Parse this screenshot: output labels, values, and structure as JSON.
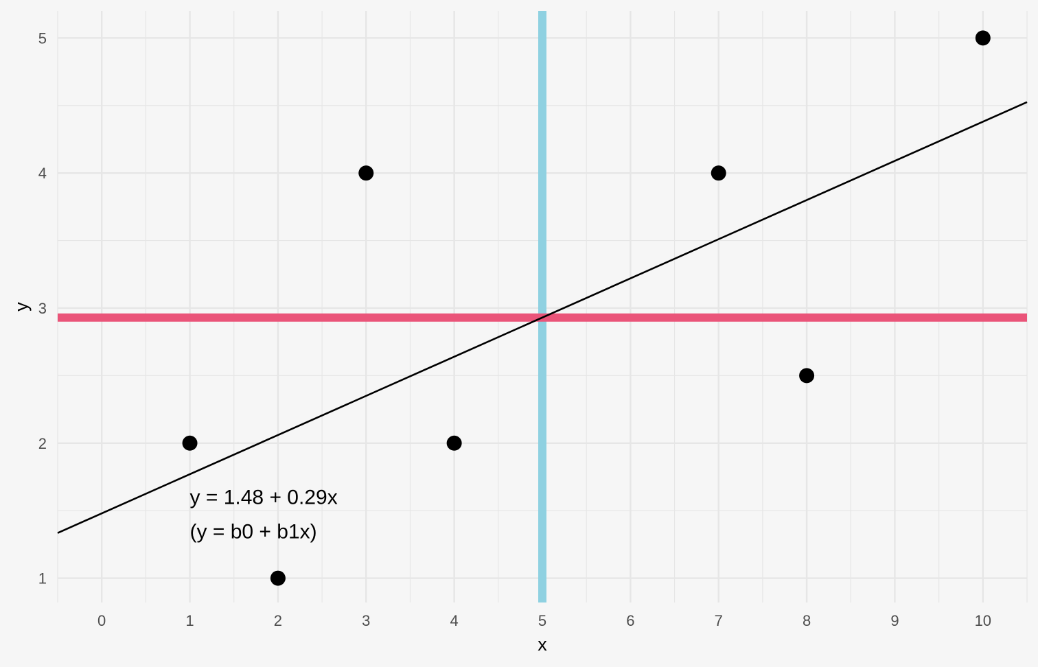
{
  "chart_data": {
    "type": "scatter",
    "xlabel": "x",
    "ylabel": "y",
    "xlim": [
      -0.5,
      10.5
    ],
    "ylim": [
      0.82,
      5.2
    ],
    "x_ticks": [
      0,
      1,
      2,
      3,
      4,
      5,
      6,
      7,
      8,
      9,
      10
    ],
    "y_ticks": [
      1,
      2,
      3,
      4,
      5
    ],
    "grid": true,
    "points": [
      {
        "x": 1,
        "y": 2
      },
      {
        "x": 2,
        "y": 1
      },
      {
        "x": 3,
        "y": 4
      },
      {
        "x": 4,
        "y": 2
      },
      {
        "x": 7,
        "y": 4
      },
      {
        "x": 8,
        "y": 2.5
      },
      {
        "x": 10,
        "y": 5
      }
    ],
    "regression_line": {
      "intercept": 1.48,
      "slope": 0.29
    },
    "mean_x": 5,
    "mean_y": 2.93,
    "annotation": {
      "x": 1,
      "y": 1.6,
      "lines": [
        "y = 1.48 + 0.29x",
        "(y = b0 + b1x)"
      ]
    },
    "colors": {
      "background": "#f6f6f6",
      "grid": "#e6e6e6",
      "mean_x_line": "#8fd1e1",
      "mean_y_line": "#ea5479",
      "regression_line": "#000000",
      "points": "#000000"
    }
  }
}
